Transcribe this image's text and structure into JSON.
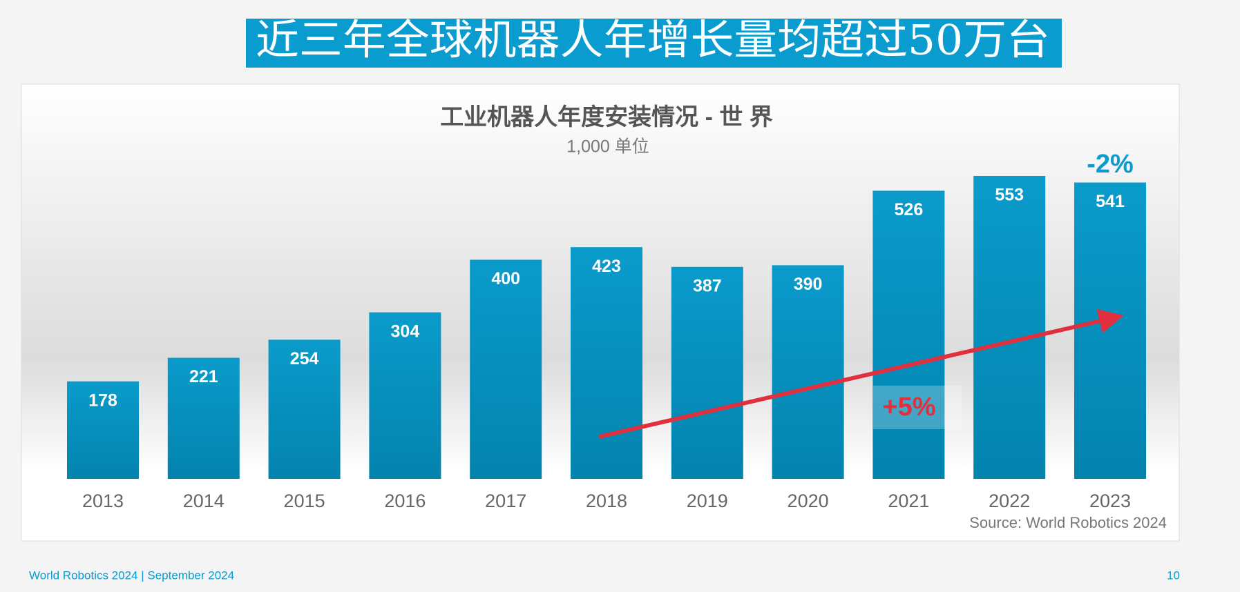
{
  "slide": {
    "title": "近三年全球机器人年增长量均超过50万台",
    "footer": "World Robotics 2024  | September 2024",
    "page": "10"
  },
  "chart_data": {
    "type": "bar",
    "title": "工业机器人年度安装情况 - 世 界",
    "subtitle": "1,000 单位",
    "categories": [
      "2013",
      "2014",
      "2015",
      "2016",
      "2017",
      "2018",
      "2019",
      "2020",
      "2021",
      "2022",
      "2023"
    ],
    "values": [
      178,
      221,
      254,
      304,
      400,
      423,
      387,
      390,
      526,
      553,
      541
    ],
    "color": "#0a9bcb",
    "annotations": [
      "+5%",
      "-2%"
    ],
    "source": "Source: World Robotics 2024"
  }
}
